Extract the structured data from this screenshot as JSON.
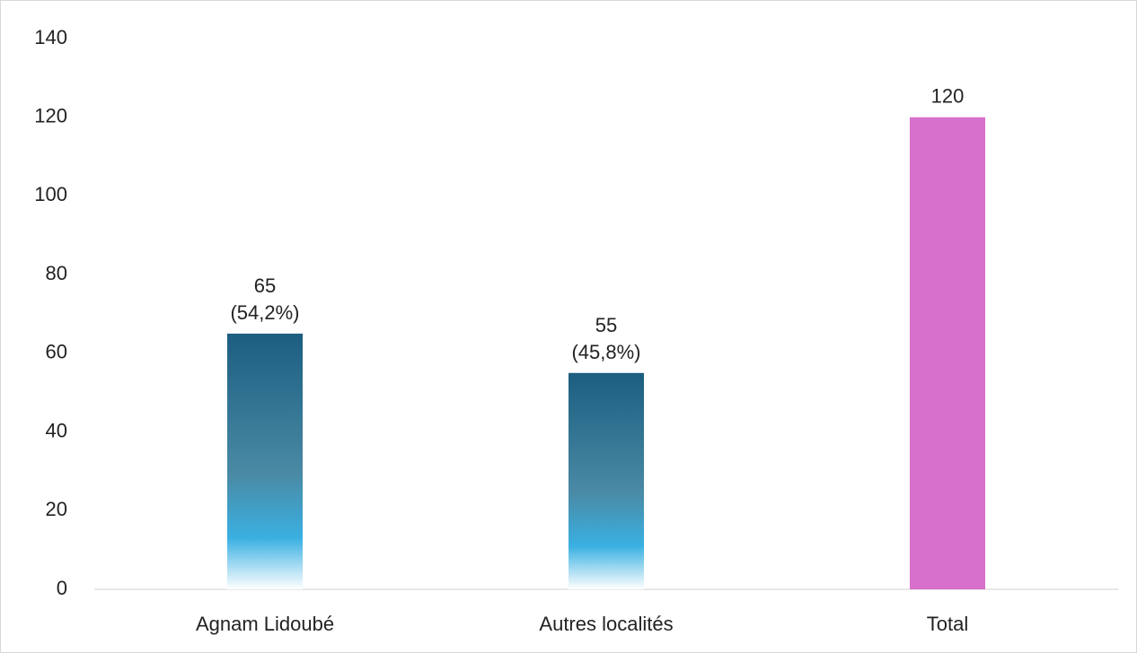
{
  "chart_data": {
    "type": "bar",
    "categories": [
      "Agnam Lidoubé",
      "Autres localités",
      "Total"
    ],
    "values": [
      65,
      55,
      120
    ],
    "value_labels": [
      "65\n(54,2%)",
      "55\n(45,8%)",
      "120"
    ],
    "colors": [
      "#1b5e80",
      "#1b5e80",
      "#d76fcc"
    ],
    "styles": [
      "gradient",
      "gradient",
      "solid"
    ],
    "ylim": [
      0,
      140
    ],
    "yticks": [
      0,
      20,
      40,
      60,
      80,
      100,
      120,
      140
    ],
    "grid": false
  }
}
